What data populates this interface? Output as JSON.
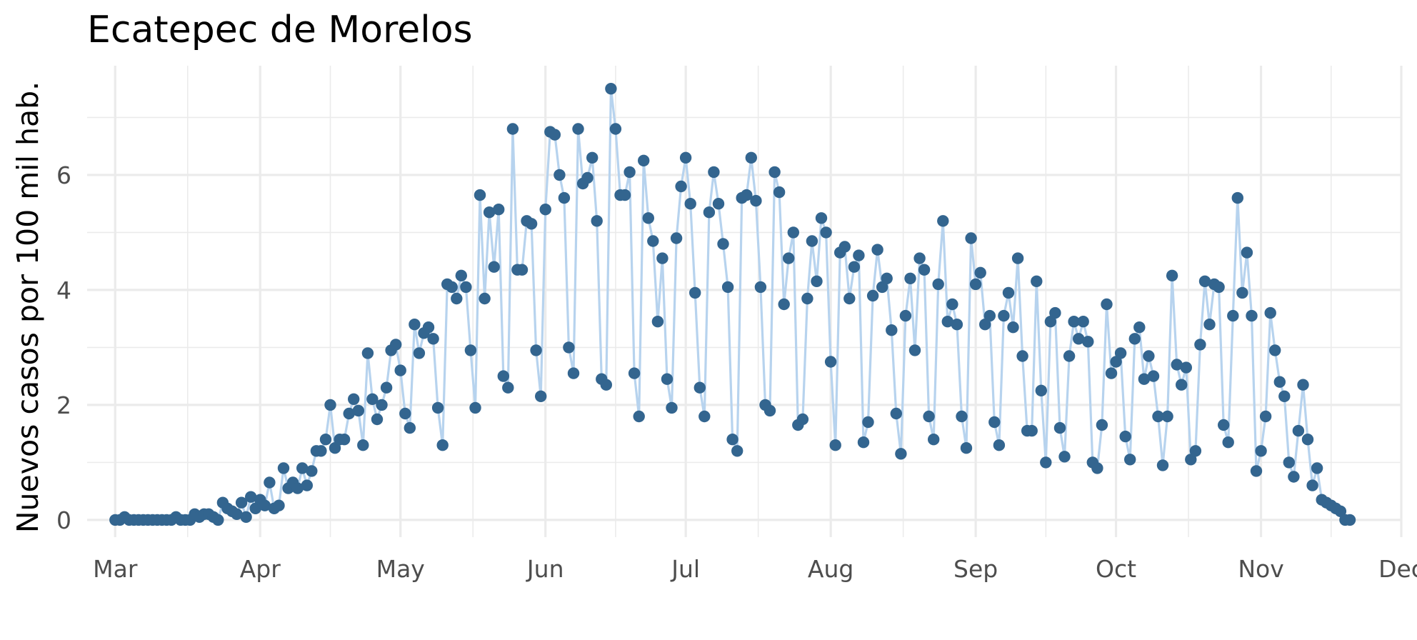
{
  "chart_data": {
    "type": "line",
    "title": "Ecatepec de Morelos",
    "xlabel": "",
    "ylabel": "Nuevos casos por 100 mil hab.",
    "x_ticks": [
      "Mar",
      "Apr",
      "May",
      "Jun",
      "Jul",
      "Aug",
      "Sep",
      "Oct",
      "Nov",
      "Dec"
    ],
    "y_ticks": [
      "0",
      "2",
      "4",
      "6"
    ],
    "xlim": [
      "2020-02-24",
      "2020-12-01"
    ],
    "ylim": [
      -0.3,
      7.9
    ],
    "grid": true,
    "legend": "none",
    "colors": {
      "line": "#b7d3ee",
      "points": "#33658f",
      "grid": "#ebebeb"
    },
    "series": [
      {
        "start_date": "2020-03-01",
        "values": [
          0.0,
          0.0,
          0.05,
          0.0,
          0.0,
          0.0,
          0.0,
          0.0,
          0.0,
          0.0,
          0.0,
          0.0,
          0.0,
          0.05,
          0.0,
          0.0,
          0.0,
          0.1,
          0.05,
          0.1,
          0.1,
          0.05,
          0.0,
          0.3,
          0.2,
          0.15,
          0.1,
          0.3,
          0.05,
          0.4,
          0.2,
          0.35,
          0.25,
          0.65,
          0.2,
          0.25,
          0.9,
          0.55,
          0.65,
          0.55,
          0.9,
          0.6,
          0.85,
          1.2,
          1.2,
          1.4,
          2.0,
          1.25,
          1.4,
          1.4,
          1.85,
          2.1,
          1.9,
          1.3,
          2.9,
          2.1,
          1.75,
          2.0,
          2.3,
          2.95,
          3.05,
          2.6,
          1.85,
          1.6,
          3.4,
          2.9,
          3.25,
          3.35,
          3.15,
          1.95,
          1.3,
          4.1,
          4.05,
          3.85,
          4.25,
          4.05,
          2.95,
          1.95,
          5.65,
          3.85,
          5.35,
          4.4,
          5.4,
          2.5,
          2.3,
          6.8,
          4.35,
          4.35,
          5.2,
          5.15,
          2.95,
          2.15,
          5.4,
          6.75,
          6.7,
          6.0,
          5.6,
          3.0,
          2.55,
          6.8,
          5.85,
          5.95,
          6.3,
          5.2,
          2.45,
          2.35,
          7.5,
          6.8,
          5.65,
          5.65,
          6.05,
          2.55,
          1.8,
          6.25,
          5.25,
          4.85,
          3.45,
          4.55,
          2.45,
          1.95,
          4.9,
          5.8,
          6.3,
          5.5,
          3.95,
          2.3,
          1.8,
          5.35,
          6.05,
          5.5,
          4.8,
          4.05,
          1.4,
          1.2,
          5.6,
          5.65,
          6.3,
          5.55,
          4.05,
          2.0,
          1.9,
          6.05,
          5.7,
          3.75,
          4.55,
          5.0,
          1.65,
          1.75,
          3.85,
          4.85,
          4.15,
          5.25,
          5.0,
          2.75,
          1.3,
          4.65,
          4.75,
          3.85,
          4.4,
          4.6,
          1.35,
          1.7,
          3.9,
          4.7,
          4.05,
          4.2,
          3.3,
          1.85,
          1.15,
          3.55,
          4.2,
          2.95,
          4.55,
          4.35,
          1.8,
          1.4,
          4.1,
          5.2,
          3.45,
          3.75,
          3.4,
          1.8,
          1.25,
          4.9,
          4.1,
          4.3,
          3.4,
          3.55,
          1.7,
          1.3,
          3.55,
          3.95,
          3.35,
          4.55,
          2.85,
          1.55,
          1.55,
          4.15,
          2.25,
          1.0,
          3.45,
          3.6,
          1.6,
          1.1,
          2.85,
          3.45,
          3.15,
          3.45,
          3.1,
          1.0,
          0.9,
          1.65,
          3.75,
          2.55,
          2.75,
          2.9,
          1.45,
          1.05,
          3.15,
          3.35,
          2.45,
          2.85,
          2.5,
          1.8,
          0.95,
          1.8,
          4.25,
          2.7,
          2.35,
          2.65,
          1.05,
          1.2,
          3.05,
          4.15,
          3.4,
          4.1,
          4.05,
          1.65,
          1.35,
          3.55,
          5.6,
          3.95,
          4.65,
          3.55,
          0.85,
          1.2,
          1.8,
          3.6,
          2.95,
          2.4,
          2.15,
          1.0,
          0.75,
          1.55,
          2.35,
          1.4,
          0.6,
          0.9,
          0.35,
          0.3,
          0.25,
          0.2,
          0.15,
          0.0,
          0.0
        ]
      }
    ]
  }
}
